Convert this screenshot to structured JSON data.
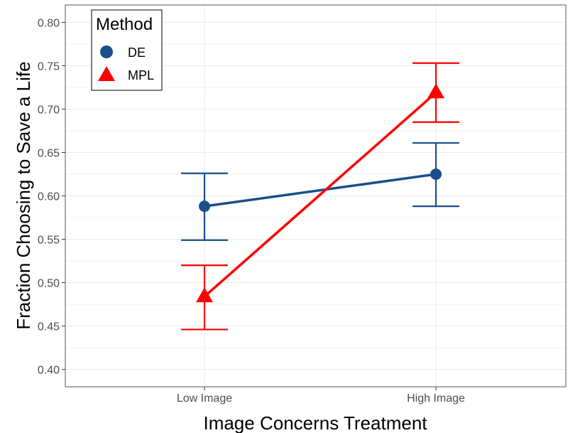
{
  "chart_data": {
    "type": "line",
    "categories": [
      "Low Image",
      "High Image"
    ],
    "xlabel": "Image Concerns Treatment",
    "ylabel": "Fraction Choosing to Save a Life",
    "ylim": [
      0.38,
      0.82
    ],
    "yticks": [
      "0.40",
      "0.45",
      "0.50",
      "0.55",
      "0.60",
      "0.65",
      "0.70",
      "0.75",
      "0.80"
    ],
    "grid": true,
    "legend": {
      "title": "Method",
      "position": "top-left"
    },
    "series": [
      {
        "name": "DE",
        "marker": "circle",
        "color": "#1a4f8b",
        "values": [
          0.588,
          0.625
        ],
        "ci_low": [
          0.549,
          0.588
        ],
        "ci_high": [
          0.626,
          0.661
        ]
      },
      {
        "name": "MPL",
        "marker": "triangle",
        "color": "#ff0000",
        "values": [
          0.484,
          0.719
        ],
        "ci_low": [
          0.446,
          0.685
        ],
        "ci_high": [
          0.52,
          0.753
        ]
      }
    ]
  }
}
